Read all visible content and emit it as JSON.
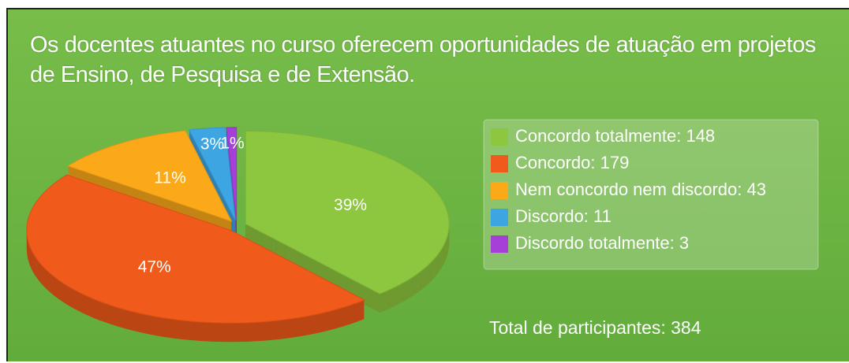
{
  "chart_data": {
    "type": "pie",
    "title": "Os docentes atuantes no curso oferecem oportunidades de atuação em projetos de Ensino, de Pesquisa e de Extensão.",
    "categories": [
      "Concordo totalmente: 148",
      "Concordo: 179",
      "Nem concordo nem discordo: 43",
      "Discordo: 11",
      "Discordo totalmente: 3"
    ],
    "values": [
      148,
      179,
      43,
      11,
      3
    ],
    "value_labels": [
      "39%",
      "47%",
      "11%",
      "3%",
      "1%"
    ],
    "colors": [
      "#8dc63f",
      "#f05a1a",
      "#fba919",
      "#3da6e2",
      "#a53fd8"
    ],
    "annotation": "Total de participantes: 384"
  }
}
